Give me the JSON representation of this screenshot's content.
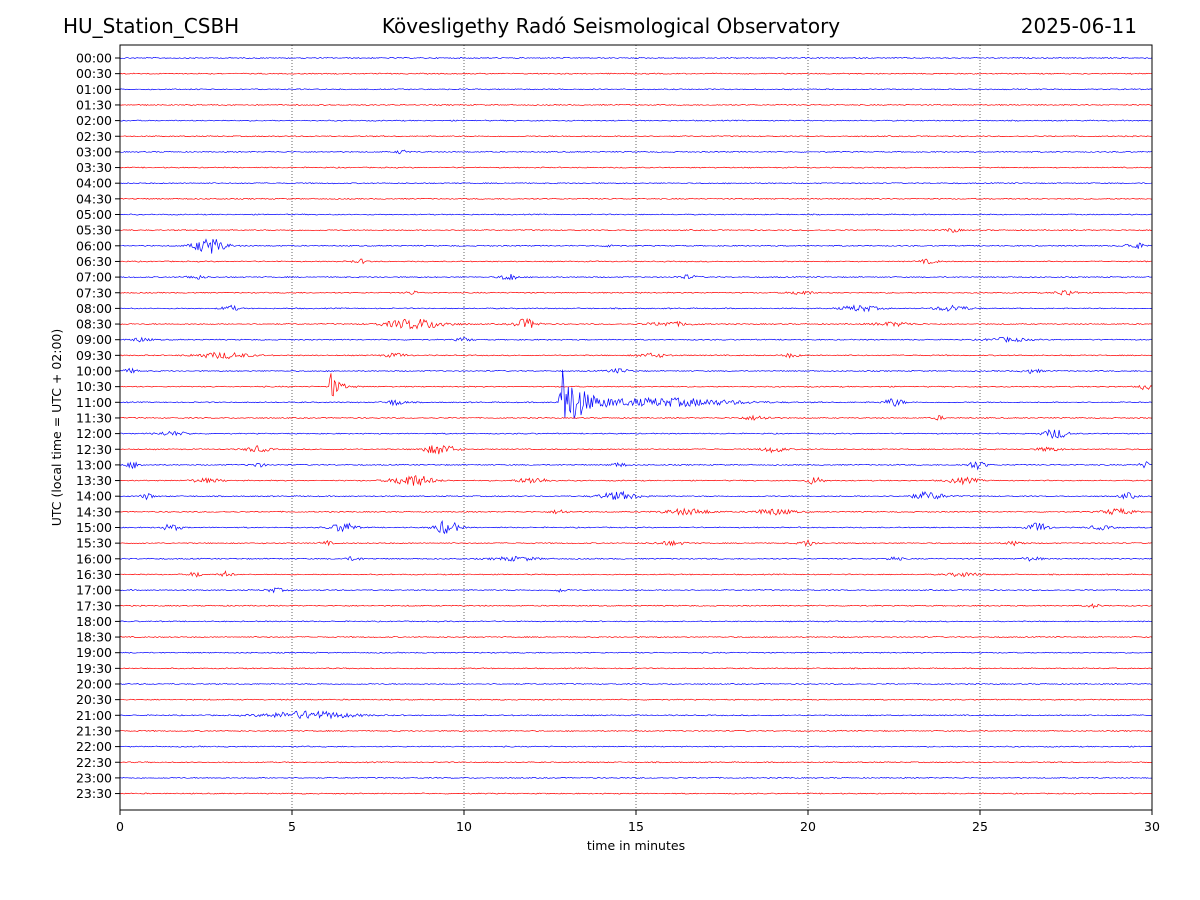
{
  "header": {
    "station": "HU_Station_CSBH",
    "observatory": "Kövesligethy Radó Seismological Observatory",
    "date": "2025-06-11"
  },
  "chart_data": {
    "type": "line",
    "title": "Kövesligethy Radó Seismological Observatory",
    "xlabel": "time in minutes",
    "ylabel": "UTC (local time = UTC + 02:00)",
    "xlim": [
      0,
      30
    ],
    "xticks": [
      "0",
      "5",
      "10",
      "15",
      "20",
      "25",
      "30"
    ],
    "grid": "vertical dotted lines at 5-minute intervals",
    "colors": {
      "even_rows": "#0000ff",
      "odd_rows": "#ff0000"
    },
    "rows": [
      {
        "label": "00:00",
        "events": []
      },
      {
        "label": "00:30",
        "events": []
      },
      {
        "label": "01:00",
        "events": []
      },
      {
        "label": "01:30",
        "events": []
      },
      {
        "label": "02:00",
        "events": []
      },
      {
        "label": "02:30",
        "events": []
      },
      {
        "label": "03:00",
        "events": [
          {
            "t": 8.2,
            "amp": 2,
            "dur": 0.3
          }
        ]
      },
      {
        "label": "03:30",
        "events": []
      },
      {
        "label": "04:00",
        "events": []
      },
      {
        "label": "04:30",
        "events": []
      },
      {
        "label": "05:00",
        "events": []
      },
      {
        "label": "05:30",
        "events": [
          {
            "t": 24.2,
            "amp": 2,
            "dur": 0.4
          }
        ]
      },
      {
        "label": "06:00",
        "events": [
          {
            "t": 2.6,
            "amp": 8,
            "dur": 0.8
          },
          {
            "t": 14.3,
            "amp": 2,
            "dur": 0.3
          },
          {
            "t": 29.5,
            "amp": 3,
            "dur": 0.5
          }
        ]
      },
      {
        "label": "06:30",
        "events": [
          {
            "t": 7.0,
            "amp": 2,
            "dur": 0.4
          },
          {
            "t": 23.5,
            "amp": 2,
            "dur": 0.5
          }
        ]
      },
      {
        "label": "07:00",
        "events": [
          {
            "t": 2.2,
            "amp": 2,
            "dur": 0.5
          },
          {
            "t": 11.3,
            "amp": 4,
            "dur": 0.4
          },
          {
            "t": 16.5,
            "amp": 2,
            "dur": 0.5
          }
        ]
      },
      {
        "label": "07:30",
        "events": [
          {
            "t": 8.5,
            "amp": 2,
            "dur": 0.3
          },
          {
            "t": 19.8,
            "amp": 2,
            "dur": 0.6
          },
          {
            "t": 27.5,
            "amp": 3,
            "dur": 0.5
          }
        ]
      },
      {
        "label": "08:00",
        "events": [
          {
            "t": 3.2,
            "amp": 3,
            "dur": 0.4
          },
          {
            "t": 21.5,
            "amp": 3,
            "dur": 0.9
          },
          {
            "t": 24.2,
            "amp": 3,
            "dur": 0.8
          }
        ]
      },
      {
        "label": "08:30",
        "events": [
          {
            "t": 8.6,
            "amp": 5,
            "dur": 1.6
          },
          {
            "t": 11.8,
            "amp": 5,
            "dur": 0.6
          },
          {
            "t": 16.0,
            "amp": 2,
            "dur": 1.2
          },
          {
            "t": 22.5,
            "amp": 2,
            "dur": 1.0
          }
        ]
      },
      {
        "label": "09:00",
        "events": [
          {
            "t": 0.6,
            "amp": 2,
            "dur": 0.5
          },
          {
            "t": 10.0,
            "amp": 2,
            "dur": 0.4
          },
          {
            "t": 25.8,
            "amp": 2,
            "dur": 1.0
          }
        ]
      },
      {
        "label": "09:30",
        "events": [
          {
            "t": 3.0,
            "amp": 3,
            "dur": 1.4
          },
          {
            "t": 8.0,
            "amp": 2,
            "dur": 0.6
          },
          {
            "t": 15.5,
            "amp": 2,
            "dur": 0.8
          },
          {
            "t": 19.5,
            "amp": 2,
            "dur": 0.4
          }
        ]
      },
      {
        "label": "10:00",
        "events": [
          {
            "t": 0.3,
            "amp": 2,
            "dur": 0.4
          },
          {
            "t": 14.5,
            "amp": 2,
            "dur": 0.6
          },
          {
            "t": 26.5,
            "amp": 2,
            "dur": 0.5
          }
        ]
      },
      {
        "label": "10:30",
        "events": [
          {
            "t": 6.1,
            "amp": 18,
            "dur": 0.8
          },
          {
            "t": 29.8,
            "amp": 3,
            "dur": 0.3
          }
        ]
      },
      {
        "label": "11:00",
        "events": [
          {
            "t": 8.0,
            "amp": 3,
            "dur": 0.5
          },
          {
            "t": 12.75,
            "amp": 45,
            "dur": 2.0
          },
          {
            "t": 16.0,
            "amp": 4,
            "dur": 3.5
          },
          {
            "t": 22.5,
            "amp": 4,
            "dur": 0.5
          }
        ]
      },
      {
        "label": "11:30",
        "events": [
          {
            "t": 18.5,
            "amp": 2,
            "dur": 0.8
          },
          {
            "t": 23.8,
            "amp": 2,
            "dur": 0.3
          }
        ]
      },
      {
        "label": "12:00",
        "events": [
          {
            "t": 1.5,
            "amp": 2,
            "dur": 0.8
          },
          {
            "t": 27.2,
            "amp": 5,
            "dur": 0.6
          }
        ]
      },
      {
        "label": "12:30",
        "events": [
          {
            "t": 4.0,
            "amp": 3,
            "dur": 0.6
          },
          {
            "t": 9.3,
            "amp": 5,
            "dur": 0.8
          },
          {
            "t": 19.0,
            "amp": 3,
            "dur": 0.6
          },
          {
            "t": 27.0,
            "amp": 2,
            "dur": 0.6
          }
        ]
      },
      {
        "label": "13:00",
        "events": [
          {
            "t": 0.4,
            "amp": 3,
            "dur": 0.4
          },
          {
            "t": 4.0,
            "amp": 2,
            "dur": 0.4
          },
          {
            "t": 14.5,
            "amp": 2,
            "dur": 0.4
          },
          {
            "t": 24.9,
            "amp": 4,
            "dur": 0.5
          },
          {
            "t": 29.8,
            "amp": 3,
            "dur": 0.3
          }
        ]
      },
      {
        "label": "13:30",
        "events": [
          {
            "t": 2.5,
            "amp": 2,
            "dur": 0.8
          },
          {
            "t": 8.5,
            "amp": 6,
            "dur": 1.0
          },
          {
            "t": 12.0,
            "amp": 3,
            "dur": 0.8
          },
          {
            "t": 20.2,
            "amp": 4,
            "dur": 0.4
          },
          {
            "t": 24.5,
            "amp": 3,
            "dur": 0.8
          }
        ]
      },
      {
        "label": "14:00",
        "events": [
          {
            "t": 0.8,
            "amp": 3,
            "dur": 0.3
          },
          {
            "t": 14.5,
            "amp": 4,
            "dur": 1.0
          },
          {
            "t": 23.5,
            "amp": 4,
            "dur": 0.8
          },
          {
            "t": 29.3,
            "amp": 3,
            "dur": 0.4
          }
        ]
      },
      {
        "label": "14:30",
        "events": [
          {
            "t": 12.8,
            "amp": 2,
            "dur": 0.5
          },
          {
            "t": 16.5,
            "amp": 3,
            "dur": 1.2
          },
          {
            "t": 19.0,
            "amp": 3,
            "dur": 1.0
          },
          {
            "t": 29.0,
            "amp": 3,
            "dur": 0.8
          }
        ]
      },
      {
        "label": "15:00",
        "events": [
          {
            "t": 1.5,
            "amp": 3,
            "dur": 0.5
          },
          {
            "t": 6.5,
            "amp": 5,
            "dur": 0.6
          },
          {
            "t": 9.5,
            "amp": 7,
            "dur": 0.6
          },
          {
            "t": 26.7,
            "amp": 5,
            "dur": 0.5
          },
          {
            "t": 28.5,
            "amp": 2,
            "dur": 0.6
          }
        ]
      },
      {
        "label": "15:30",
        "events": [
          {
            "t": 6.0,
            "amp": 2,
            "dur": 0.3
          },
          {
            "t": 16.0,
            "amp": 2,
            "dur": 0.8
          },
          {
            "t": 20.0,
            "amp": 3,
            "dur": 0.4
          },
          {
            "t": 26.0,
            "amp": 2,
            "dur": 0.5
          }
        ]
      },
      {
        "label": "16:00",
        "events": [
          {
            "t": 6.8,
            "amp": 2,
            "dur": 0.4
          },
          {
            "t": 11.5,
            "amp": 2,
            "dur": 1.2
          },
          {
            "t": 22.5,
            "amp": 2,
            "dur": 0.4
          },
          {
            "t": 26.5,
            "amp": 2,
            "dur": 0.5
          }
        ]
      },
      {
        "label": "16:30",
        "events": [
          {
            "t": 2.2,
            "amp": 3,
            "dur": 0.3
          },
          {
            "t": 3.1,
            "amp": 3,
            "dur": 0.3
          },
          {
            "t": 24.5,
            "amp": 2,
            "dur": 0.8
          }
        ]
      },
      {
        "label": "17:00",
        "events": [
          {
            "t": 4.5,
            "amp": 2,
            "dur": 0.5
          },
          {
            "t": 12.8,
            "amp": 2,
            "dur": 0.3
          }
        ]
      },
      {
        "label": "17:30",
        "events": [
          {
            "t": 28.3,
            "amp": 2,
            "dur": 0.3
          }
        ]
      },
      {
        "label": "18:00",
        "events": []
      },
      {
        "label": "18:30",
        "events": []
      },
      {
        "label": "19:00",
        "events": []
      },
      {
        "label": "19:30",
        "events": []
      },
      {
        "label": "20:00",
        "events": []
      },
      {
        "label": "20:30",
        "events": []
      },
      {
        "label": "21:00",
        "events": [
          {
            "t": 5.5,
            "amp": 4,
            "dur": 2.2
          }
        ]
      },
      {
        "label": "21:30",
        "events": []
      },
      {
        "label": "22:00",
        "events": []
      },
      {
        "label": "22:30",
        "events": []
      },
      {
        "label": "23:00",
        "events": []
      },
      {
        "label": "23:30",
        "events": []
      }
    ]
  }
}
